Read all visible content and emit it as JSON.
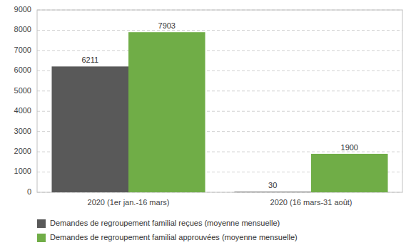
{
  "chart_data": {
    "type": "bar",
    "categories": [
      "2020 (1er jan.-16 mars)",
      "2020 (16 mars-31 août)"
    ],
    "series": [
      {
        "name": "Demandes de regroupement familial reçues (moyenne mensuelle)",
        "color": "#595959",
        "values": [
          6211,
          30
        ]
      },
      {
        "name": "Demandes de regroupement familial approuvées (moyenne mensuelle)",
        "color": "#70AD47",
        "values": [
          7903,
          1900
        ]
      }
    ],
    "ylim": [
      0,
      9000
    ],
    "yticks": [
      0,
      1000,
      2000,
      3000,
      4000,
      5000,
      6000,
      7000,
      8000,
      9000
    ],
    "grid": true,
    "data_labels": true,
    "legend": "bottom"
  }
}
